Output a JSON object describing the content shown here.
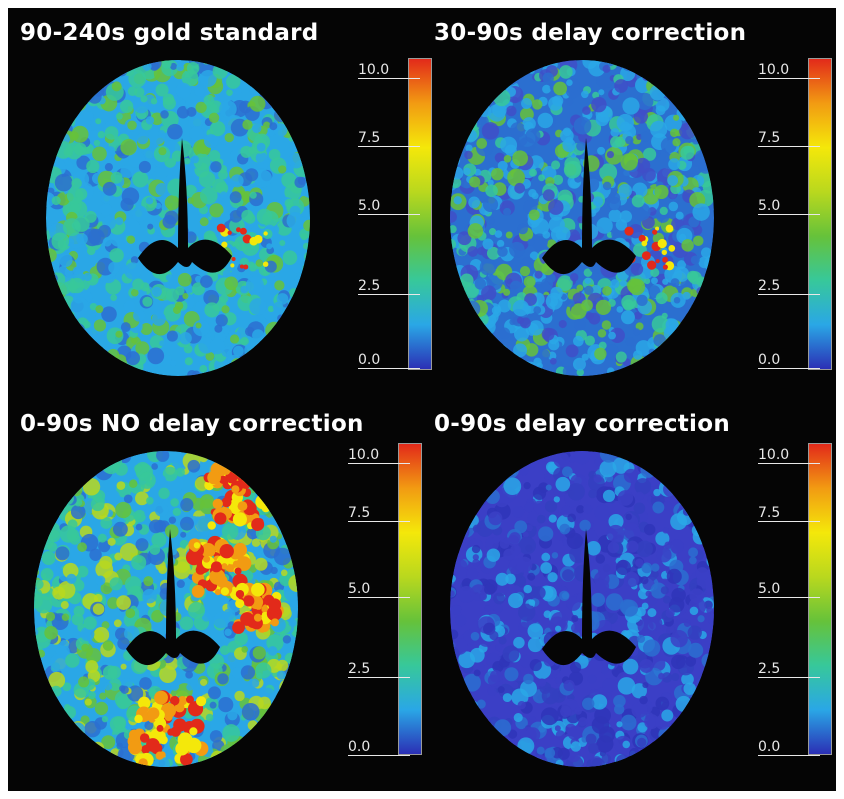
{
  "panels": [
    {
      "title": "90-240s gold standard",
      "scale_ticks": [
        "10.0",
        "7.5",
        "5.0",
        "2.5",
        "0.0"
      ]
    },
    {
      "title": "30-90s delay correction",
      "scale_ticks": [
        "10.0",
        "7.5",
        "5.0",
        "2.5",
        "0.0"
      ]
    },
    {
      "title": "0-90s NO delay correction",
      "scale_ticks": [
        "10.0",
        "7.5",
        "5.0",
        "2.5",
        "0.0"
      ]
    },
    {
      "title": "0-90s delay correction",
      "scale_ticks": [
        "10.0",
        "7.5",
        "5.0",
        "2.5",
        "0.0"
      ]
    }
  ],
  "colors": {
    "background": "#050505",
    "scale_gradient": [
      "#2b2fb5",
      "#2aa7e6",
      "#37c89a",
      "#66c23a",
      "#b9d81e",
      "#f4e80a",
      "#f29b12",
      "#e22a1a"
    ]
  }
}
